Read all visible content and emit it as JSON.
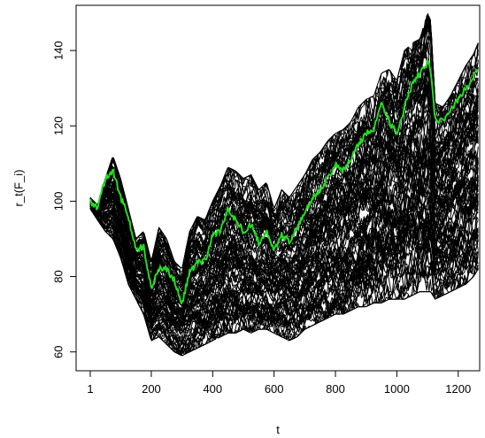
{
  "chart_data": {
    "type": "line",
    "title": "",
    "xlabel": "t",
    "ylabel": "r_t(F_i)",
    "xlim": [
      -45,
      1270
    ],
    "ylim": [
      55,
      152
    ],
    "x_ticks": [
      1,
      200,
      400,
      600,
      800,
      1000,
      1200
    ],
    "y_ticks": [
      60,
      80,
      100,
      120,
      140
    ],
    "x_tick_labels": [
      "1",
      "200",
      "400",
      "600",
      "800",
      "1000",
      "1200"
    ],
    "y_tick_labels": [
      "60",
      "80",
      "100",
      "120",
      "140"
    ],
    "grid": false,
    "legend": "none",
    "bundle": {
      "color": "#000000",
      "count": 100,
      "x": [
        1,
        25,
        50,
        75,
        100,
        125,
        150,
        175,
        200,
        225,
        250,
        275,
        300,
        325,
        350,
        375,
        400,
        425,
        450,
        475,
        500,
        525,
        550,
        575,
        600,
        625,
        650,
        675,
        700,
        725,
        750,
        775,
        800,
        825,
        850,
        875,
        900,
        925,
        950,
        975,
        1000,
        1025,
        1050,
        1075,
        1100,
        1110,
        1125,
        1150,
        1175,
        1200,
        1225,
        1250,
        1265
      ],
      "upper": [
        101,
        99,
        106,
        112,
        106,
        98,
        90,
        92,
        84,
        93,
        90,
        84,
        82,
        92,
        96,
        95,
        100,
        104,
        109,
        108,
        106,
        107,
        103,
        105,
        98,
        103,
        101,
        104,
        107,
        111,
        113,
        116,
        118,
        119,
        121,
        125,
        127,
        128,
        134,
        135,
        132,
        140,
        142,
        143,
        150,
        148,
        126,
        125,
        128,
        132,
        136,
        139,
        142
      ],
      "lower": [
        98,
        95,
        92,
        90,
        85,
        78,
        74,
        70,
        63,
        64,
        62,
        60,
        59,
        60,
        61,
        62,
        63,
        64,
        65,
        65,
        66,
        65,
        66,
        66,
        65,
        64,
        63,
        64,
        66,
        67,
        68,
        69,
        70,
        70,
        71,
        72,
        72,
        73,
        73,
        74,
        74,
        74,
        75,
        76,
        76,
        76,
        74,
        75,
        76,
        77,
        78,
        80,
        82
      ]
    },
    "highlight": {
      "color": "#22dd22",
      "x": [
        1,
        25,
        50,
        75,
        100,
        125,
        150,
        175,
        200,
        225,
        250,
        275,
        300,
        325,
        350,
        375,
        400,
        425,
        450,
        475,
        500,
        525,
        550,
        575,
        600,
        625,
        650,
        675,
        700,
        725,
        750,
        775,
        800,
        825,
        850,
        875,
        900,
        925,
        950,
        975,
        1000,
        1025,
        1050,
        1075,
        1100,
        1110,
        1125,
        1150,
        1175,
        1200,
        1225,
        1250,
        1265
      ],
      "y": [
        100,
        98,
        106,
        108,
        101,
        96,
        87,
        88,
        77,
        82,
        82,
        79,
        73,
        81,
        84,
        84,
        91,
        92,
        98,
        95,
        92,
        94,
        89,
        92,
        87,
        91,
        89,
        93,
        97,
        101,
        103,
        106,
        110,
        108,
        111,
        115,
        118,
        119,
        126,
        121,
        118,
        125,
        131,
        134,
        137,
        135,
        122,
        121,
        124,
        127,
        130,
        133,
        135
      ]
    }
  }
}
